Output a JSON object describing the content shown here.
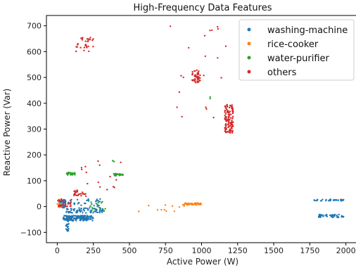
{
  "chart_data": {
    "type": "scatter",
    "title": "High-Frequency Data Features",
    "xlabel": "Active Power (W)",
    "ylabel": "Reactive Power (Var)",
    "xlim": [
      -75,
      2075
    ],
    "ylim": [
      -140,
      740
    ],
    "xticks": [
      0,
      250,
      500,
      750,
      1000,
      1250,
      1500,
      1750,
      2000
    ],
    "yticks": [
      -100,
      0,
      100,
      200,
      300,
      400,
      500,
      600,
      700
    ],
    "grid": false,
    "legend_position": "top-right",
    "series": [
      {
        "name": "washing-machine",
        "color": "#1f77b4",
        "clusters": [
          {
            "x": [
              40,
              250
            ],
            "y": [
              -55,
              -35
            ],
            "n": 160
          },
          {
            "x": [
              60,
              320
            ],
            "y": [
              -25,
              -5
            ],
            "n": 70
          },
          {
            "x": [
              60,
              80
            ],
            "y": [
              -95,
              -40
            ],
            "n": 25
          },
          {
            "x": [
              10,
              60
            ],
            "y": [
              -5,
              25
            ],
            "n": 40
          },
          {
            "x": [
              20,
              300
            ],
            "y": [
              0,
              30
            ],
            "n": 35
          },
          {
            "x": [
              1780,
              1990
            ],
            "y": [
              22,
              28
            ],
            "n": 30
          },
          {
            "x": [
              1810,
              2000
            ],
            "y": [
              -42,
              -30
            ],
            "n": 45
          }
        ]
      },
      {
        "name": "rice-cooker",
        "color": "#ff7f0e",
        "clusters": [
          {
            "x": [
              880,
              1000
            ],
            "y": [
              6,
              14
            ],
            "n": 40
          },
          {
            "x": [
              560,
              880
            ],
            "y": [
              -20,
              8
            ],
            "n": 12
          },
          {
            "x": [
              0,
              20
            ],
            "y": [
              -5,
              15
            ],
            "n": 10
          }
        ]
      },
      {
        "name": "water-purifier",
        "color": "#2ca02c",
        "clusters": [
          {
            "x": [
              65,
              125
            ],
            "y": [
              122,
              132
            ],
            "n": 30
          },
          {
            "x": [
              390,
              460
            ],
            "y": [
              119,
              128
            ],
            "n": 25
          },
          {
            "x": [
              230,
              370
            ],
            "y": [
              -20,
              20
            ],
            "n": 15
          },
          {
            "x": [
              1040,
              1060
            ],
            "y": [
              415,
              425
            ],
            "n": 2
          },
          {
            "x": [
              380,
              395
            ],
            "y": [
              170,
              180
            ],
            "n": 2
          }
        ]
      },
      {
        "name": "others",
        "color": "#d62728",
        "clusters": [
          {
            "x": [
              1160,
              1220
            ],
            "y": [
              285,
              395
            ],
            "n": 120
          },
          {
            "x": [
              930,
              990
            ],
            "y": [
              480,
              530
            ],
            "n": 45
          },
          {
            "x": [
              130,
              250
            ],
            "y": [
              600,
              660
            ],
            "n": 30
          },
          {
            "x": [
              100,
              200
            ],
            "y": [
              40,
              65
            ],
            "n": 25
          },
          {
            "x": [
              0,
              100
            ],
            "y": [
              0,
              30
            ],
            "n": 30
          },
          {
            "x": [
              700,
              1200
            ],
            "y": [
              340,
              700
            ],
            "n": 20
          },
          {
            "x": [
              150,
              450
            ],
            "y": [
              60,
              180
            ],
            "n": 15
          }
        ]
      }
    ]
  }
}
